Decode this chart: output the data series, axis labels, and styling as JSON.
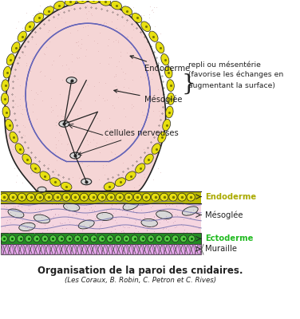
{
  "title": "Organisation de la paroi des cnidaires.",
  "subtitle": "(Les Coraux, B. Robin, C. Petron et C. Rives)",
  "labels": {
    "endoderme_arrow": "Endoderme",
    "mesoglee_arrow": "Mésoglée",
    "cellules": "cellules nerveuses",
    "repli": "repli ou mésentérie",
    "repli2": "(favorise les échanges en",
    "repli3": "augmentant la surface)",
    "endoderme_right": "Endoderme",
    "mesoglee_right": "Mésoglée",
    "ectoderme_right": "Ectoderme",
    "muraille_right": "Muraille"
  },
  "colors": {
    "background": "#ffffff",
    "pink_tissue": "#f5d5d5",
    "pink_base": "#f0c8c8",
    "yellow_cells": "#e8e010",
    "yellow_bg": "#b8b800",
    "green_cells": "#55cc44",
    "green_bg": "#228B22",
    "dark_outline": "#222222",
    "purple_muraille": "#cc88cc",
    "purple_bg": "#aa55aa",
    "endoderme_label": "#bbbb00",
    "ectoderme_label": "#22bb22",
    "text_dark": "#111111",
    "mesoglee_line": "#6666aa",
    "stipple": "#cc9999"
  }
}
